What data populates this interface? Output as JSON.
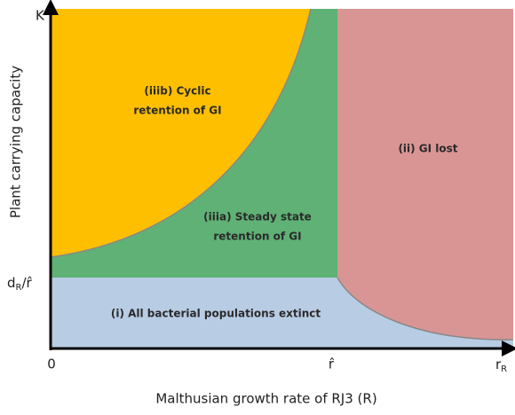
{
  "y_axis": {
    "top_label": "K",
    "title": "Plant carrying capacity",
    "level_label": {
      "base": "d",
      "sub": "R",
      "rest": "/r̂"
    }
  },
  "x_axis": {
    "origin_label": "0",
    "mid_label": "r̂",
    "end_label": {
      "base": "r",
      "sub": "R"
    },
    "title": "Malthusian growth rate of RJ3 (R)"
  },
  "regions": [
    {
      "lines": [
        "(iiib) Cyclic",
        "retention of GI"
      ]
    },
    {
      "lines": [
        "(iiia) Steady state",
        "retention of GI"
      ]
    },
    {
      "lines": [
        "(ii) GI lost"
      ]
    },
    {
      "lines": [
        "(i) All bacterial populations extinct"
      ]
    }
  ]
}
